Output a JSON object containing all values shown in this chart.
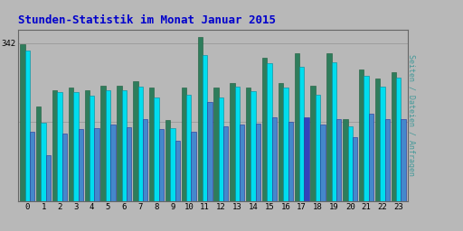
{
  "title": "Stunden-Statistik im Monat Januar 2015",
  "ylabel": "Seiten / Dateien / Anfragen",
  "hours": [
    0,
    1,
    2,
    3,
    4,
    5,
    6,
    7,
    8,
    9,
    10,
    11,
    12,
    13,
    14,
    15,
    16,
    17,
    18,
    19,
    20,
    21,
    22,
    23
  ],
  "seiten": [
    340,
    205,
    240,
    245,
    240,
    250,
    250,
    260,
    245,
    175,
    245,
    355,
    245,
    255,
    245,
    310,
    255,
    320,
    250,
    320,
    178,
    285,
    265,
    278
  ],
  "dateien": [
    325,
    170,
    235,
    235,
    228,
    240,
    240,
    248,
    225,
    158,
    230,
    315,
    225,
    248,
    238,
    298,
    245,
    290,
    230,
    300,
    162,
    270,
    248,
    268
  ],
  "anfragen": [
    150,
    100,
    145,
    155,
    158,
    165,
    160,
    178,
    155,
    130,
    150,
    215,
    162,
    165,
    168,
    182,
    172,
    182,
    165,
    178,
    138,
    188,
    178,
    178
  ],
  "color_seiten": "#2e7d5c",
  "color_dateien": "#00ddee",
  "color_anfragen_normal": "#4488cc",
  "color_anfragen_17": "#3344bb",
  "background_plot": "#b8b8b8",
  "background_fig": "#b8b8b8",
  "title_color": "#0000cc",
  "ylabel_color": "#449999",
  "ylim": [
    0,
    370
  ],
  "ytick_val": 342
}
